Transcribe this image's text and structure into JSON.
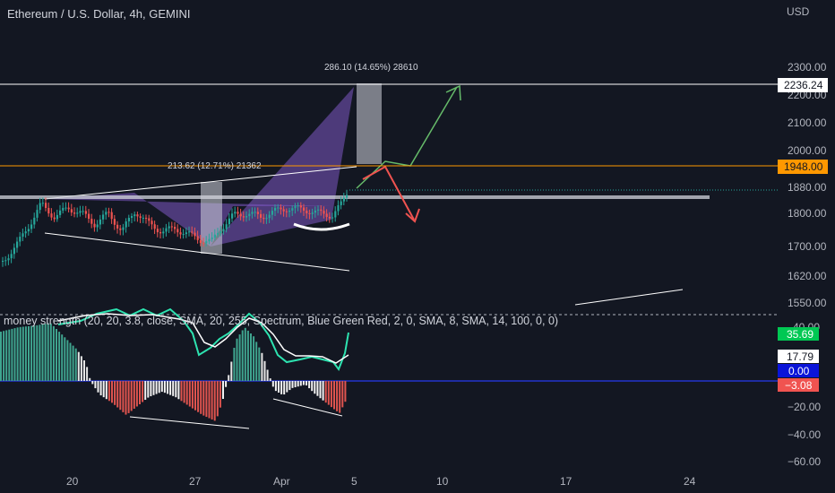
{
  "header": {
    "title": "Ethereum / U.S. Dollar, 4h, GEMINI",
    "currency": "USD"
  },
  "chart_data": {
    "type": "candlestick",
    "price_axis": {
      "ticks": [
        "2300.00",
        "2200.00",
        "2100.00",
        "2000.00",
        "1880.00",
        "1800.00",
        "1700.00",
        "1620.00",
        "1550.00"
      ]
    },
    "time_axis": {
      "ticks": [
        "20",
        "27",
        "Apr",
        "5",
        "10",
        "17",
        "24"
      ]
    },
    "levels": [
      {
        "value": 2236.24,
        "label": "2236.24",
        "color": "#ffffff"
      },
      {
        "value": 1948.0,
        "label": "1948.00",
        "color": "#ff9800"
      }
    ],
    "annotations": [
      {
        "text": "286.10 (14.65%) 28610"
      },
      {
        "text": "213.62 (12.71%) 21362"
      }
    ],
    "indicator": {
      "label": "money strength (20, 20, 3.8, close, SMA, 20, 255, Spectrum, Blue Green Red, 2, 0, SMA, 8, SMA, 14, 100, 0, 0)",
      "axis_ticks": [
        "−20.00",
        "−40.00",
        "−60.00"
      ],
      "axis_ticks_partial": "40.00",
      "tags": [
        {
          "label": "35.69",
          "color": "#00c853",
          "text_color": "#ffffff"
        },
        {
          "label": "17.79",
          "color": "#ffffff",
          "text_color": "#131722"
        },
        {
          "label": "0.00",
          "color": "#0a14d8",
          "text_color": "#ffffff"
        },
        {
          "label": "−3.08",
          "color": "#f05350",
          "text_color": "#ffffff"
        }
      ]
    },
    "colors": {
      "background": "#131722",
      "up": "#26a69a",
      "down": "#ef5350",
      "pattern": "#7e57c2",
      "green_projection": "#66bb6a",
      "red_projection": "#ef5350",
      "zero_line": "#2233cc"
    }
  }
}
